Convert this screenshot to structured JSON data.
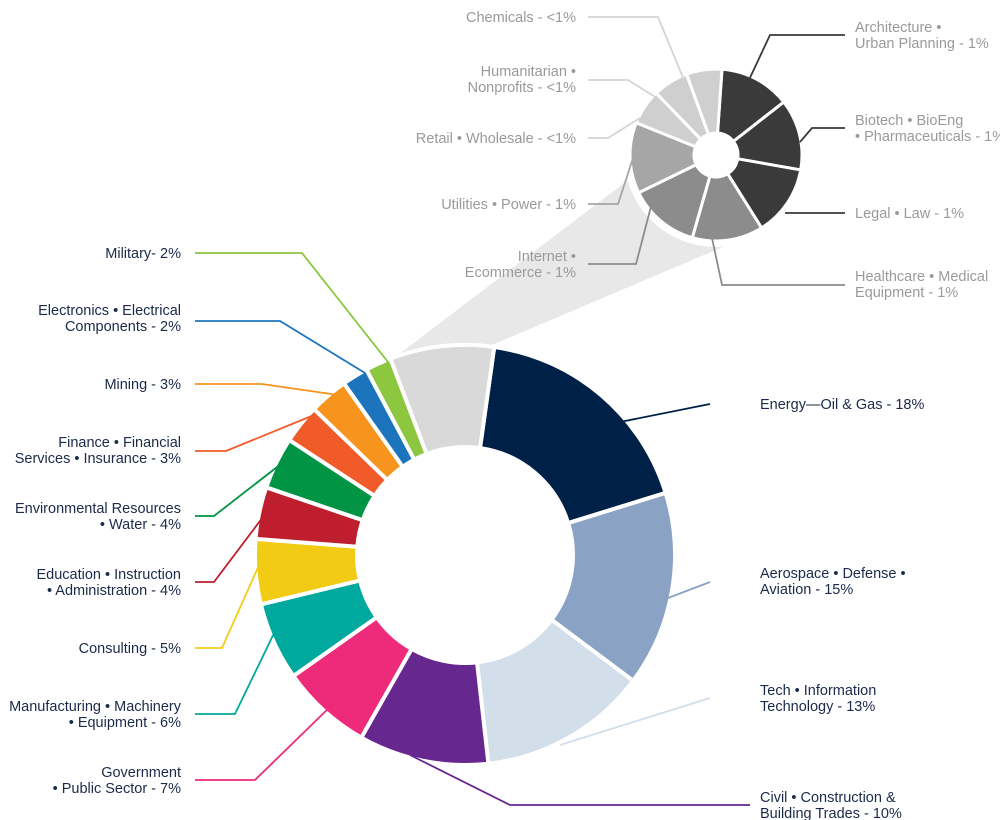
{
  "chart_data": [
    {
      "type": "pie",
      "variant": "donut",
      "slices": [
        {
          "label": [
            "Energy—Oil & Gas - 18%"
          ],
          "value": 18,
          "color": "#002147"
        },
        {
          "label": [
            "Aerospace • Defense •",
            "Aviation - 15%"
          ],
          "value": 15,
          "color": "#8aa2c4"
        },
        {
          "label": [
            "Tech • Information",
            "Technology - 13%"
          ],
          "value": 13,
          "color": "#d2deea"
        },
        {
          "label": [
            "Civil • Construction &",
            "Building Trades - 10%"
          ],
          "value": 10,
          "color": "#66288f"
        },
        {
          "label": [
            "Government",
            "• Public Sector - 7%"
          ],
          "value": 7,
          "color": "#ee2a7b"
        },
        {
          "label": [
            "Manufacturing • Machinery",
            "• Equipment - 6%"
          ],
          "value": 6,
          "color": "#00a99d"
        },
        {
          "label": [
            "Consulting - 5%"
          ],
          "value": 5,
          "color": "#f2cc14"
        },
        {
          "label": [
            "Education • Instruction",
            "• Administration - 4%"
          ],
          "value": 4,
          "color": "#be1e2d"
        },
        {
          "label": [
            "Environmental Resources",
            "• Water - 4%"
          ],
          "value": 4,
          "color": "#009444"
        },
        {
          "label": [
            "Finance • Financial",
            "Services • Insurance - 3%"
          ],
          "value": 3,
          "color": "#f15a29"
        },
        {
          "label": [
            "Mining - 3%"
          ],
          "value": 3,
          "color": "#f7941d"
        },
        {
          "label": [
            "Electronics • Electrical",
            "Components - 2%"
          ],
          "value": 2,
          "color": "#1c75bc"
        },
        {
          "label": [
            "Military- 2%"
          ],
          "value": 2,
          "color": "#8dc63f"
        },
        {
          "label": [],
          "value": 8,
          "color": "#d9d9d9"
        }
      ]
    },
    {
      "type": "pie",
      "variant": "donut",
      "slices": [
        {
          "label": [
            "Architecture •",
            "Urban Planning - 1%"
          ],
          "value": 1,
          "color": "#3a3a3a"
        },
        {
          "label": [
            "Biotech • BioEng",
            "• Pharmaceuticals - 1%"
          ],
          "value": 1,
          "color": "#3a3a3a"
        },
        {
          "label": [
            "Legal • Law - 1%"
          ],
          "value": 1,
          "color": "#3a3a3a"
        },
        {
          "label": [
            "Healthcare • Medical",
            "Equipment - 1%"
          ],
          "value": 1,
          "color": "#8c8c8c"
        },
        {
          "label": [
            "Internet •",
            "Ecommerce - 1%"
          ],
          "value": 1,
          "color": "#8c8c8c"
        },
        {
          "label": [
            "Utilities • Power - 1%"
          ],
          "value": 1,
          "color": "#a6a6a6"
        },
        {
          "label": [
            "Retail • Wholesale - <1%"
          ],
          "value": 0.5,
          "color": "#cfcfcf"
        },
        {
          "label": [
            "Humanitarian •",
            "Nonprofits - <1%"
          ],
          "value": 0.5,
          "color": "#cfcfcf"
        },
        {
          "label": [
            "Chemicals - <1%"
          ],
          "value": 0.5,
          "color": "#cfcfcf"
        }
      ]
    }
  ]
}
